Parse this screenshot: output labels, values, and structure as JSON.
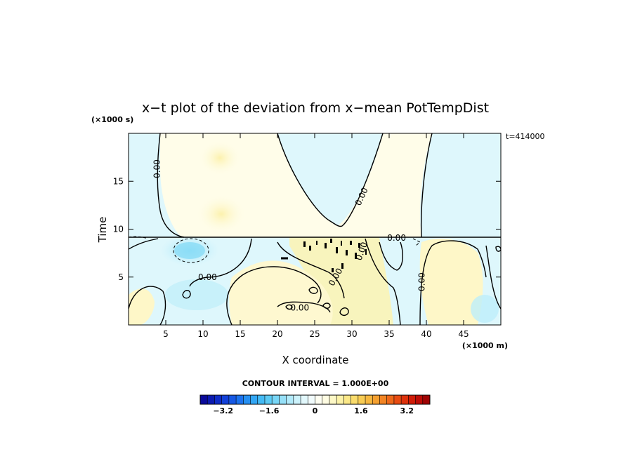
{
  "chart_data": {
    "type": "heatmap",
    "title": "x−t plot of the deviation from x−mean PotTempDist",
    "xlabel": "X coordinate",
    "ylabel": "Time",
    "x_unit": "(×1000 m)",
    "y_unit": "(×1000 s)",
    "time_label": "t=414000",
    "xlim": [
      0,
      50
    ],
    "ylim": [
      0,
      20
    ],
    "x_ticks": [
      5,
      10,
      15,
      20,
      25,
      30,
      35,
      40,
      45
    ],
    "y_ticks": [
      5,
      10,
      15
    ],
    "x_tick_labels": [
      "5",
      "10",
      "15",
      "20",
      "25",
      "30",
      "35",
      "40",
      "45"
    ],
    "y_tick_labels": [
      "5",
      "10",
      "15"
    ],
    "grid": false,
    "contour_labels": [
      {
        "text": "0.00",
        "x": 3.8,
        "y": 16.3,
        "rot": -90
      },
      {
        "text": "0.00",
        "x": 31.3,
        "y": 13.4,
        "rot": -65
      },
      {
        "text": "0.00",
        "x": 36.0,
        "y": 9.1,
        "rot": 0
      },
      {
        "text": "0.00",
        "x": 10.6,
        "y": 5.0,
        "rot": 0
      },
      {
        "text": "0.00",
        "x": 31.3,
        "y": 7.7,
        "rot": -70
      },
      {
        "text": "0.00",
        "x": 27.8,
        "y": 5.0,
        "rot": -60
      },
      {
        "text": "0.00",
        "x": 23.0,
        "y": 1.8,
        "rot": 0
      },
      {
        "text": "0.00",
        "x": 39.4,
        "y": 4.5,
        "rot": -90
      }
    ],
    "contour_interval_text": "CONTOUR INTERVAL = 1.000E+00",
    "colorbar": {
      "min": -4,
      "max": 4,
      "tick_values": [
        -3.2,
        -1.6,
        0,
        1.6,
        3.2
      ],
      "tick_labels": [
        "−3.2",
        "−1.6",
        "0",
        "1.6",
        "3.2"
      ],
      "colors": [
        "#0a0a9a",
        "#0c1ab0",
        "#0f2cc6",
        "#1240d8",
        "#1658e4",
        "#1c72ee",
        "#2690f2",
        "#32a6f4",
        "#44baf4",
        "#5ccaf4",
        "#78d6f6",
        "#96e0f8",
        "#b2eafa",
        "#ccf2fb",
        "#e2f8fc",
        "#f2fcfd",
        "#fefef2",
        "#fefce2",
        "#fdf8c6",
        "#fcf2a8",
        "#fbe888",
        "#fadc6c",
        "#f8cc54",
        "#f6b840",
        "#f4a030",
        "#f28424",
        "#ee681a",
        "#e84c12",
        "#de320c",
        "#d01c08",
        "#bc0c06",
        "#a00404"
      ]
    }
  }
}
